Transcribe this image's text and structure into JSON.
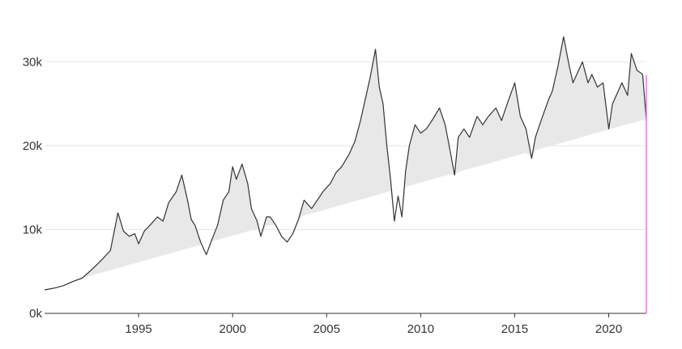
{
  "chart_data": {
    "type": "area",
    "title": "",
    "xlabel": "",
    "ylabel": "",
    "xlim": [
      1990,
      2022
    ],
    "ylim": [
      0,
      34000
    ],
    "grid": true,
    "x_ticks": [
      1995,
      2000,
      2005,
      2010,
      2015,
      2020
    ],
    "x_tick_labels": [
      "1995",
      "2000",
      "2005",
      "2010",
      "2015",
      "2020"
    ],
    "y_ticks": [
      0,
      10000,
      20000,
      30000
    ],
    "y_tick_labels": [
      "0k",
      "10k",
      "20k",
      "30k"
    ],
    "line_color": "#333333",
    "fill_color": "#e8e8e8",
    "marker_color": "#ff66ff",
    "baseline": {
      "x": [
        1992.0,
        2022.0
      ],
      "y": [
        4200,
        23200
      ]
    },
    "x": [
      1990.0,
      1990.5,
      1991.0,
      1991.5,
      1992.0,
      1992.5,
      1993.0,
      1993.5,
      1993.9,
      1994.2,
      1994.5,
      1994.8,
      1995.0,
      1995.3,
      1995.6,
      1996.0,
      1996.3,
      1996.6,
      1997.0,
      1997.3,
      1997.6,
      1997.8,
      1998.0,
      1998.3,
      1998.6,
      1998.9,
      1999.2,
      1999.5,
      1999.8,
      2000.0,
      2000.2,
      2000.5,
      2000.8,
      2001.0,
      2001.3,
      2001.5,
      2001.8,
      2002.0,
      2002.3,
      2002.6,
      2002.9,
      2003.2,
      2003.5,
      2003.8,
      2004.2,
      2004.5,
      2004.8,
      2005.2,
      2005.5,
      2005.8,
      2006.2,
      2006.5,
      2006.8,
      2007.0,
      2007.3,
      2007.6,
      2007.8,
      2008.0,
      2008.2,
      2008.4,
      2008.6,
      2008.8,
      2009.0,
      2009.2,
      2009.4,
      2009.7,
      2010.0,
      2010.3,
      2010.6,
      2011.0,
      2011.3,
      2011.6,
      2011.8,
      2012.0,
      2012.3,
      2012.6,
      2013.0,
      2013.3,
      2013.6,
      2014.0,
      2014.3,
      2014.6,
      2015.0,
      2015.3,
      2015.6,
      2015.9,
      2016.1,
      2016.4,
      2016.8,
      2017.0,
      2017.3,
      2017.6,
      2017.9,
      2018.1,
      2018.3,
      2018.6,
      2018.9,
      2019.1,
      2019.4,
      2019.7,
      2020.0,
      2020.2,
      2020.4,
      2020.7,
      2021.0,
      2021.2,
      2021.5,
      2021.8,
      2022.0
    ],
    "values": [
      2800,
      3000,
      3300,
      3800,
      4200,
      5200,
      6300,
      7500,
      12000,
      9800,
      9200,
      9500,
      8300,
      9800,
      10500,
      11500,
      11000,
      13200,
      14500,
      16500,
      13500,
      11200,
      10500,
      8500,
      7000,
      8800,
      10500,
      13500,
      14500,
      17500,
      16000,
      17800,
      15500,
      12500,
      11000,
      9200,
      11500,
      11500,
      10500,
      9200,
      8500,
      9500,
      11200,
      13500,
      12500,
      13500,
      14500,
      15500,
      16800,
      17500,
      19000,
      20500,
      23000,
      25000,
      28000,
      31500,
      27000,
      25000,
      20000,
      16000,
      11000,
      14000,
      11500,
      17000,
      20000,
      22500,
      21500,
      22000,
      23000,
      24500,
      22500,
      19000,
      16500,
      21000,
      22000,
      21000,
      23500,
      22500,
      23500,
      24500,
      23000,
      25000,
      27500,
      23500,
      22000,
      18500,
      21000,
      23000,
      25500,
      26500,
      29500,
      33000,
      29500,
      27500,
      28500,
      30000,
      27500,
      28500,
      27000,
      27500,
      22000,
      25000,
      26000,
      27500,
      26000,
      31000,
      29000,
      28500,
      23000
    ]
  }
}
